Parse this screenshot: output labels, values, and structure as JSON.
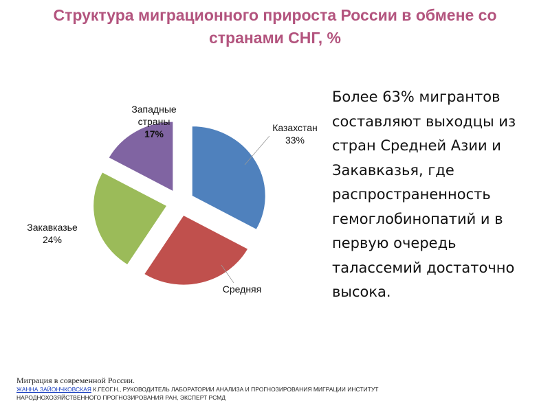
{
  "title": "Структура миграционного прироста России в обмене со странами СНГ, %",
  "chart_data": {
    "type": "pie",
    "exploded": true,
    "slices": [
      {
        "label_line1": "Казахстан",
        "label_line2": "33%",
        "value": 33,
        "color": "#4f81bd"
      },
      {
        "label_line1": "Средняя",
        "label_line2": "",
        "value": 26,
        "color": "#c0504d"
      },
      {
        "label_line1": "Закавказье",
        "label_line2": "24%",
        "value": 24,
        "color": "#9bbb59"
      },
      {
        "label_line1": "Западные страны",
        "label_line2": "17%",
        "value": 17,
        "color": "#8064a2"
      }
    ]
  },
  "body_text": "Более 63% мигрантов составляют выходцы из стран Средней Азии и Закавказья, где распространенность гемоглобинопатий и в первую очередь талассемий достаточно высока.",
  "footer": {
    "source": "Миграция в современной России.",
    "author_link": "Жанна Зайончковская",
    "author_rest": " к.геог.н., руководитель лаборатории анализа и прогнозирования миграции Институт народнохозяйственного прогнозирования РАН, эксперт РСМД"
  }
}
